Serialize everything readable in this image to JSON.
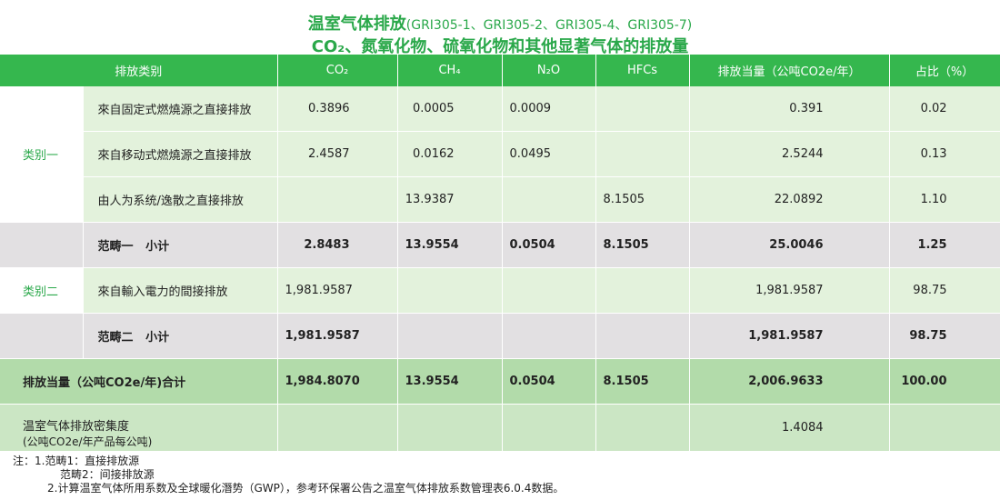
{
  "title_line1": "温室气体排放",
  "title_line1_sub": "(GRI305-1、GRI305-2、GRI305-4、GRI305-7)",
  "title_line2": "CO₂、氮氧化物、硫氧化物和其他显著气体的排放量",
  "headers": [
    "排放类别",
    "CO₂",
    "CH₄",
    "N₂O",
    "HFCs",
    "排放当量（公吨CO2e/年）",
    "占比（%）"
  ],
  "categories": {
    "cat1": "类别一",
    "cat2": "类别二"
  },
  "rows": {
    "fixed": {
      "label": "來自固定式燃燒源之直接排放",
      "co2": "0.3896",
      "ch4": "0.0005",
      "n2o": "0.0009",
      "hfcs": "",
      "eq": "0.391",
      "share": "0.02"
    },
    "mobile": {
      "label": "來自移动式燃燒源之直接排放",
      "co2": "2.4587",
      "ch4": "0.0162",
      "n2o": "0.0495",
      "hfcs": "",
      "eq": "2.5244",
      "share": "0.13"
    },
    "fugitive": {
      "label": "由人为系统/逸散之直接排放",
      "co2": "",
      "ch4": "13.9387",
      "n2o": "",
      "hfcs": "8.1505",
      "eq": "22.0892",
      "share": "1.10"
    },
    "scope1": {
      "label": "范畴一   小计",
      "co2": "2.8483",
      "ch4": "13.9554",
      "n2o": "0.0504",
      "hfcs": "8.1505",
      "eq": "25.0046",
      "share": "1.25"
    },
    "electric": {
      "label": "來自輸入電力的間接排放",
      "co2": "1,981.9587",
      "ch4": "",
      "n2o": "",
      "hfcs": "",
      "eq": "1,981.9587",
      "share": "98.75"
    },
    "scope2": {
      "label": "范畴二   小计",
      "co2": "1,981.9587",
      "ch4": "",
      "n2o": "",
      "hfcs": "",
      "eq": "1,981.9587",
      "share": "98.75"
    },
    "total": {
      "label": "排放当量（公吨CO2e/年)合计",
      "co2": "1,984.8070",
      "ch4": "13.9554",
      "n2o": "0.0504",
      "hfcs": "8.1505",
      "eq": "2,006.9633",
      "share": "100.00"
    },
    "density": {
      "label1": "温室气体排放密集度",
      "label2": "(公吨CO2e/年产品每公吨)",
      "eq": "1.4084"
    }
  },
  "notes": {
    "n1": "注：1.范畴1：直接排放源",
    "n2": "范畴2：间接排放源",
    "n3": "2.计算温室气体所用系数及全球暖化潛势（GWP），参考环保署公告之温室气体排放系数管理表6.0.4数据。"
  }
}
